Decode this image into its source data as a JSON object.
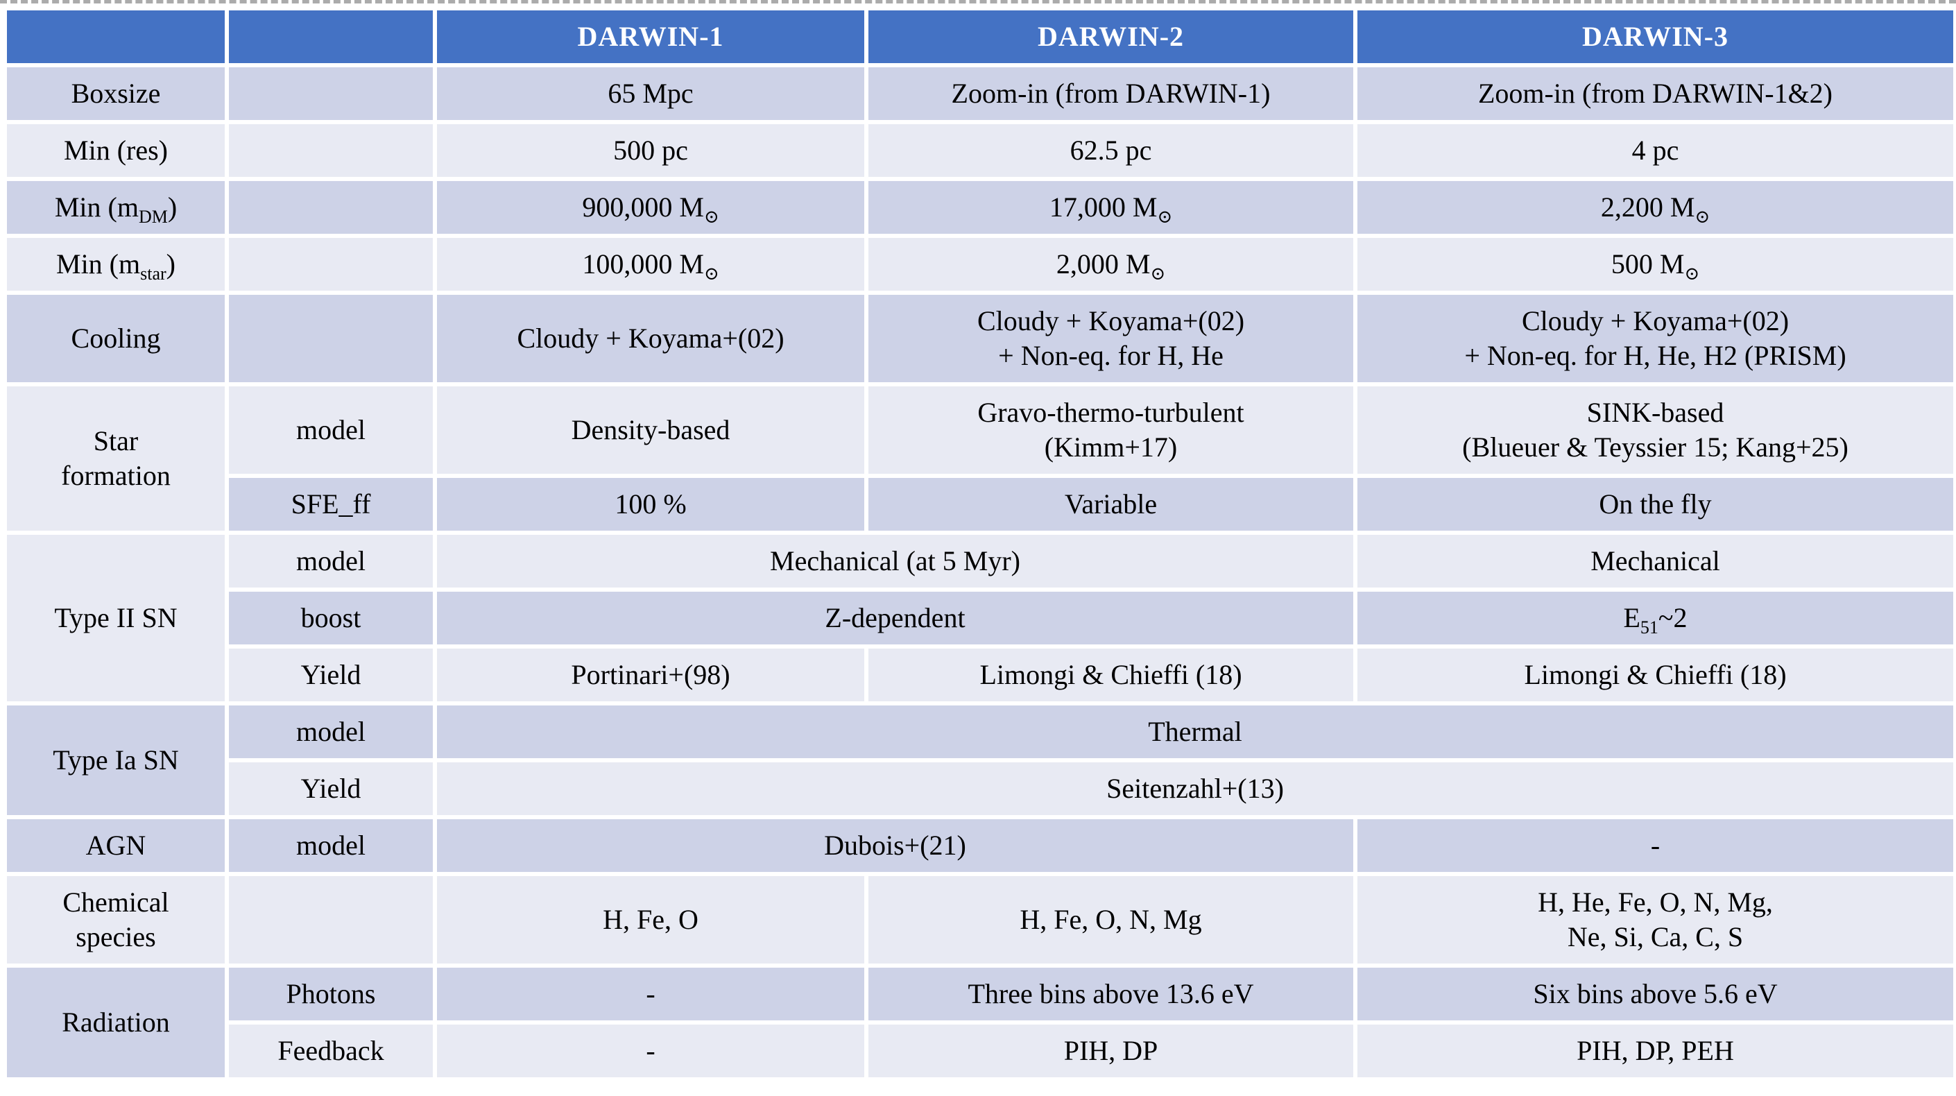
{
  "colors": {
    "header_bg": "#4472C4",
    "header_text": "#FFFFFF",
    "row_dark_bg": "#CDD2E7",
    "row_light_bg": "#E8EAF3",
    "grid_line": "#FFFFFF",
    "body_text": "#000000",
    "top_dashed_line": "#ABABAB"
  },
  "table": {
    "header": [
      "",
      "",
      "DARWIN-1",
      "DARWIN-2",
      "DARWIN-3"
    ],
    "rows": [
      {
        "shade": "dark",
        "cells": [
          {
            "name": "row-label-boxsize",
            "lines": [
              [
                "Boxsize"
              ]
            ]
          },
          {
            "name": "sub-label-empty",
            "lines": [
              [
                ""
              ]
            ]
          },
          {
            "name": "boxsize-darwin1",
            "lines": [
              [
                "65 Mpc"
              ]
            ]
          },
          {
            "name": "boxsize-darwin2",
            "lines": [
              [
                "Zoom-in (from DARWIN-1)"
              ]
            ]
          },
          {
            "name": "boxsize-darwin3",
            "lines": [
              [
                "Zoom-in (from DARWIN-1&2)"
              ]
            ]
          }
        ]
      },
      {
        "shade": "light",
        "cells": [
          {
            "name": "row-label-min-res",
            "lines": [
              [
                "Min (res)"
              ]
            ]
          },
          {
            "name": "sub-label-empty",
            "lines": [
              [
                ""
              ]
            ]
          },
          {
            "name": "min-res-darwin1",
            "lines": [
              [
                "500 pc"
              ]
            ]
          },
          {
            "name": "min-res-darwin2",
            "lines": [
              [
                "62.5 pc"
              ]
            ]
          },
          {
            "name": "min-res-darwin3",
            "lines": [
              [
                "4 pc"
              ]
            ]
          }
        ]
      },
      {
        "shade": "dark",
        "cells": [
          {
            "name": "row-label-min-mdm",
            "lines": [
              [
                "Min (m",
                {
                  "t": "DM",
                  "sub": true
                },
                ")"
              ]
            ]
          },
          {
            "name": "sub-label-empty",
            "lines": [
              [
                ""
              ]
            ]
          },
          {
            "name": "min-mdm-darwin1",
            "lines": [
              [
                "900,000 M",
                {
                  "t": "⊙",
                  "sub": true
                }
              ]
            ]
          },
          {
            "name": "min-mdm-darwin2",
            "lines": [
              [
                "17,000 M",
                {
                  "t": "⊙",
                  "sub": true
                }
              ]
            ]
          },
          {
            "name": "min-mdm-darwin3",
            "lines": [
              [
                "2,200 M",
                {
                  "t": "⊙",
                  "sub": true
                }
              ]
            ]
          }
        ]
      },
      {
        "shade": "light",
        "cells": [
          {
            "name": "row-label-min-mstar",
            "lines": [
              [
                "Min (m",
                {
                  "t": "star",
                  "sub": true
                },
                ")"
              ]
            ]
          },
          {
            "name": "sub-label-empty",
            "lines": [
              [
                ""
              ]
            ]
          },
          {
            "name": "min-mstar-darwin1",
            "lines": [
              [
                "100,000 M",
                {
                  "t": "⊙",
                  "sub": true
                }
              ]
            ]
          },
          {
            "name": "min-mstar-darwin2",
            "lines": [
              [
                "2,000 M",
                {
                  "t": "⊙",
                  "sub": true
                }
              ]
            ]
          },
          {
            "name": "min-mstar-darwin3",
            "lines": [
              [
                "500 M",
                {
                  "t": "⊙",
                  "sub": true
                }
              ]
            ]
          }
        ]
      },
      {
        "shade": "dark",
        "cells": [
          {
            "name": "row-label-cooling",
            "lines": [
              [
                "Cooling"
              ]
            ]
          },
          {
            "name": "sub-label-empty",
            "lines": [
              [
                ""
              ]
            ]
          },
          {
            "name": "cooling-darwin1",
            "lines": [
              [
                "Cloudy + Koyama+(02)"
              ]
            ]
          },
          {
            "name": "cooling-darwin2",
            "lines": [
              [
                "Cloudy + Koyama+(02)"
              ],
              [
                "+ Non-eq. for H, He"
              ]
            ]
          },
          {
            "name": "cooling-darwin3",
            "lines": [
              [
                "Cloudy + Koyama+(02)"
              ],
              [
                "+ Non-eq. for H, He, H2 (PRISM)"
              ]
            ]
          }
        ]
      },
      {
        "shade": "light",
        "cells": [
          {
            "name": "row-label-star-formation",
            "rowspan": 2,
            "lines": [
              [
                "Star"
              ],
              [
                "formation"
              ]
            ]
          },
          {
            "name": "sub-label-model",
            "lines": [
              [
                "model"
              ]
            ]
          },
          {
            "name": "sf-model-darwin1",
            "lines": [
              [
                "Density-based"
              ]
            ]
          },
          {
            "name": "sf-model-darwin2",
            "lines": [
              [
                "Gravo-thermo-turbulent"
              ],
              [
                "(Kimm+17)"
              ]
            ]
          },
          {
            "name": "sf-model-darwin3",
            "lines": [
              [
                "SINK-based"
              ],
              [
                "(Blueuer & Teyssier 15; Kang+25)"
              ]
            ]
          }
        ]
      },
      {
        "shade": "dark",
        "cells": [
          {
            "name": "sub-label-sfe-ff",
            "lines": [
              [
                "SFE_ff"
              ]
            ]
          },
          {
            "name": "sfe-darwin1",
            "lines": [
              [
                "100 %"
              ]
            ]
          },
          {
            "name": "sfe-darwin2",
            "lines": [
              [
                "Variable"
              ]
            ]
          },
          {
            "name": "sfe-darwin3",
            "lines": [
              [
                "On the fly"
              ]
            ]
          }
        ]
      },
      {
        "shade": "light",
        "cells": [
          {
            "name": "row-label-type-ii-sn",
            "rowspan": 3,
            "lines": [
              [
                "Type II SN"
              ]
            ]
          },
          {
            "name": "sub-label-model",
            "lines": [
              [
                "model"
              ]
            ]
          },
          {
            "name": "sn2-model-darwin1-2",
            "colspan": 2,
            "lines": [
              [
                "Mechanical (at 5 Myr)"
              ]
            ]
          },
          {
            "name": "sn2-model-darwin3",
            "lines": [
              [
                "Mechanical"
              ]
            ]
          }
        ]
      },
      {
        "shade": "dark",
        "cells": [
          {
            "name": "sub-label-boost",
            "lines": [
              [
                "boost"
              ]
            ]
          },
          {
            "name": "sn2-boost-darwin1-2",
            "colspan": 2,
            "lines": [
              [
                "Z-dependent"
              ]
            ]
          },
          {
            "name": "sn2-boost-darwin3",
            "lines": [
              [
                "E",
                {
                  "t": "51",
                  "sub": true
                },
                "~2"
              ]
            ]
          }
        ]
      },
      {
        "shade": "light",
        "cells": [
          {
            "name": "sub-label-yield",
            "lines": [
              [
                "Yield"
              ]
            ]
          },
          {
            "name": "sn2-yield-darwin1",
            "lines": [
              [
                "Portinari+(98)"
              ]
            ]
          },
          {
            "name": "sn2-yield-darwin2",
            "lines": [
              [
                "Limongi & Chieffi (18)"
              ]
            ]
          },
          {
            "name": "sn2-yield-darwin3",
            "lines": [
              [
                "Limongi & Chieffi (18)"
              ]
            ]
          }
        ]
      },
      {
        "shade": "dark",
        "cells": [
          {
            "name": "row-label-type-ia-sn",
            "rowspan": 2,
            "lines": [
              [
                "Type Ia SN"
              ]
            ]
          },
          {
            "name": "sub-label-model",
            "lines": [
              [
                "model"
              ]
            ]
          },
          {
            "name": "sn1a-model-all",
            "colspan": 3,
            "lines": [
              [
                "Thermal"
              ]
            ]
          }
        ]
      },
      {
        "shade": "light",
        "cells": [
          {
            "name": "sub-label-yield",
            "lines": [
              [
                "Yield"
              ]
            ]
          },
          {
            "name": "sn1a-yield-all",
            "colspan": 3,
            "lines": [
              [
                "Seitenzahl+(13)"
              ]
            ]
          }
        ]
      },
      {
        "shade": "dark",
        "cells": [
          {
            "name": "row-label-agn",
            "lines": [
              [
                "AGN"
              ]
            ]
          },
          {
            "name": "sub-label-model",
            "lines": [
              [
                "model"
              ]
            ]
          },
          {
            "name": "agn-model-darwin1-2",
            "colspan": 2,
            "lines": [
              [
                "Dubois+(21)"
              ]
            ]
          },
          {
            "name": "agn-model-darwin3",
            "lines": [
              [
                "-"
              ]
            ]
          }
        ]
      },
      {
        "shade": "light",
        "cells": [
          {
            "name": "row-label-chemical-species",
            "lines": [
              [
                "Chemical"
              ],
              [
                "species"
              ]
            ]
          },
          {
            "name": "sub-label-empty",
            "lines": [
              [
                ""
              ]
            ]
          },
          {
            "name": "chem-darwin1",
            "lines": [
              [
                "H, Fe, O"
              ]
            ]
          },
          {
            "name": "chem-darwin2",
            "lines": [
              [
                "H, Fe, O, N, Mg"
              ]
            ]
          },
          {
            "name": "chem-darwin3",
            "lines": [
              [
                "H, He, Fe, O, N, Mg,"
              ],
              [
                "Ne, Si, Ca, C, S"
              ]
            ]
          }
        ]
      },
      {
        "shade": "dark",
        "cells": [
          {
            "name": "row-label-radiation",
            "rowspan": 2,
            "lines": [
              [
                "Radiation"
              ]
            ]
          },
          {
            "name": "sub-label-photons",
            "lines": [
              [
                "Photons"
              ]
            ]
          },
          {
            "name": "rad-photons-darwin1",
            "lines": [
              [
                "-"
              ]
            ]
          },
          {
            "name": "rad-photons-darwin2",
            "lines": [
              [
                "Three bins above 13.6 eV"
              ]
            ]
          },
          {
            "name": "rad-photons-darwin3",
            "lines": [
              [
                "Six bins above 5.6 eV"
              ]
            ]
          }
        ]
      },
      {
        "shade": "light",
        "cells": [
          {
            "name": "sub-label-feedback",
            "lines": [
              [
                "Feedback"
              ]
            ]
          },
          {
            "name": "rad-feedback-darwin1",
            "lines": [
              [
                "-"
              ]
            ]
          },
          {
            "name": "rad-feedback-darwin2",
            "lines": [
              [
                "PIH, DP"
              ]
            ]
          },
          {
            "name": "rad-feedback-darwin3",
            "lines": [
              [
                "PIH, DP, PEH"
              ]
            ]
          }
        ]
      }
    ]
  }
}
